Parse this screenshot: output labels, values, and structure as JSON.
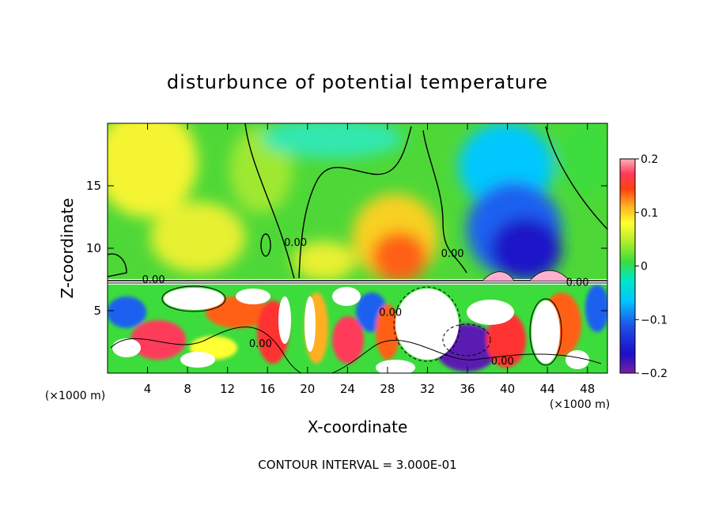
{
  "chart_data": {
    "type": "heatmap",
    "title": "disturbunce of potential temperature",
    "xlabel": "X-coordinate",
    "ylabel": "Z-coordinate",
    "x_unit": "(×1000 m)",
    "x_unit_right": "(×1000 m)",
    "footer": "CONTOUR INTERVAL = 3.000E-01",
    "xlim": [
      0,
      50
    ],
    "ylim": [
      0,
      20
    ],
    "x_ticks": [
      4,
      8,
      12,
      16,
      20,
      24,
      28,
      32,
      36,
      40,
      44,
      48
    ],
    "y_ticks": [
      5,
      10,
      15
    ],
    "colorbar": {
      "range": [
        -0.2,
        0.2
      ],
      "labels": [
        "0.2",
        "0.1",
        "0",
        "−0.1",
        "−0.2"
      ],
      "label_values": [
        0.2,
        0.1,
        0,
        -0.1,
        -0.2
      ]
    },
    "contour_labels": [
      {
        "text": "0.00",
        "x": 18.8,
        "z": 10.2
      },
      {
        "text": "0.00",
        "x": 34.5,
        "z": 9.3
      },
      {
        "text": "0.00",
        "x": 4.6,
        "z": 7.2
      },
      {
        "text": "0.00",
        "x": 15.3,
        "z": 2.1
      },
      {
        "text": "0.00",
        "x": 28.3,
        "z": 4.6
      },
      {
        "text": "0.00",
        "x": 39.5,
        "z": 0.7
      },
      {
        "text": "0.00",
        "x": 47.0,
        "z": 7.0
      }
    ]
  }
}
